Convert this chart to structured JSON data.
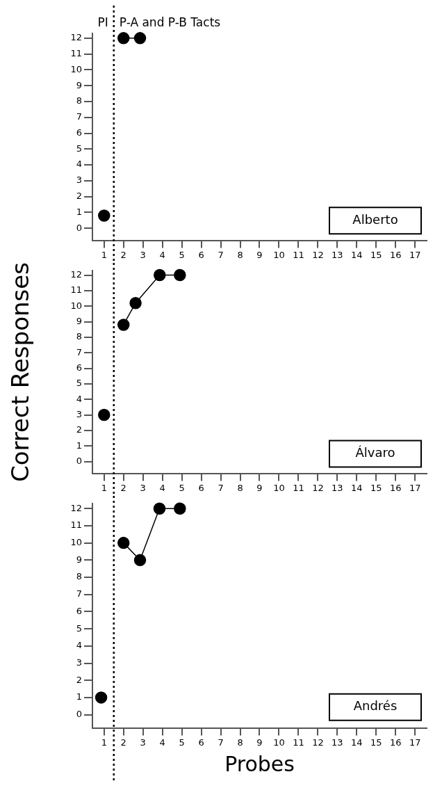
{
  "chart_data": [
    {
      "type": "line",
      "title": "Alberto",
      "annotations": [
        "PI",
        "P-A and P-B Tacts"
      ],
      "xlim": [
        0.4,
        17.6
      ],
      "xticks": [
        1,
        2,
        3,
        4,
        5,
        6,
        7,
        8,
        9,
        10,
        11,
        12,
        13,
        14,
        15,
        16,
        17
      ],
      "ylim": [
        -0.8,
        12.3
      ],
      "yticks": [
        0,
        1,
        2,
        3,
        4,
        5,
        6,
        7,
        8,
        9,
        10,
        11,
        12
      ],
      "grid": false,
      "legend": false,
      "marker": "circle",
      "line_style": "solid",
      "ref_lines": [
        {
          "axis": "x",
          "value": 1.5,
          "line_style": "dotted",
          "color": "#000000"
        }
      ],
      "series": [
        {
          "color": "#000000",
          "x": [
            1
          ],
          "values": [
            0.8
          ]
        },
        {
          "color": "#000000",
          "x": [
            2,
            2.85
          ],
          "values": [
            12,
            12
          ]
        }
      ]
    },
    {
      "type": "line",
      "title": "Álvaro",
      "ylabel": "Correct Responses",
      "xlim": [
        0.4,
        17.6
      ],
      "xticks": [
        1,
        2,
        3,
        4,
        5,
        6,
        7,
        8,
        9,
        10,
        11,
        12,
        13,
        14,
        15,
        16,
        17
      ],
      "ylim": [
        -0.8,
        12.3
      ],
      "yticks": [
        0,
        1,
        2,
        3,
        4,
        5,
        6,
        7,
        8,
        9,
        10,
        11,
        12
      ],
      "grid": false,
      "legend": false,
      "marker": "circle",
      "line_style": "solid",
      "ref_lines": [
        {
          "axis": "x",
          "value": 1.5,
          "line_style": "dotted",
          "color": "#000000"
        }
      ],
      "series": [
        {
          "color": "#000000",
          "x": [
            1
          ],
          "values": [
            3
          ]
        },
        {
          "color": "#000000",
          "x": [
            2,
            2.62,
            3.86,
            4.9
          ],
          "values": [
            8.8,
            10.2,
            12,
            12
          ]
        }
      ]
    },
    {
      "type": "line",
      "title": "Andrés",
      "xlabel": "Probes",
      "xlim": [
        0.4,
        17.6
      ],
      "xticks": [
        1,
        2,
        3,
        4,
        5,
        6,
        7,
        8,
        9,
        10,
        11,
        12,
        13,
        14,
        15,
        16,
        17
      ],
      "ylim": [
        -0.8,
        12.3
      ],
      "yticks": [
        0,
        1,
        2,
        3,
        4,
        5,
        6,
        7,
        8,
        9,
        10,
        11,
        12
      ],
      "grid": false,
      "legend": false,
      "marker": "circle",
      "line_style": "solid",
      "ref_lines": [
        {
          "axis": "x",
          "value": 1.5,
          "line_style": "dotted",
          "color": "#000000"
        }
      ],
      "series": [
        {
          "color": "#000000",
          "x": [
            0.85
          ],
          "values": [
            1
          ]
        },
        {
          "color": "#000000",
          "x": [
            2,
            2.85,
            3.85,
            4.9
          ],
          "values": [
            10,
            9,
            12,
            12
          ]
        }
      ]
    }
  ]
}
